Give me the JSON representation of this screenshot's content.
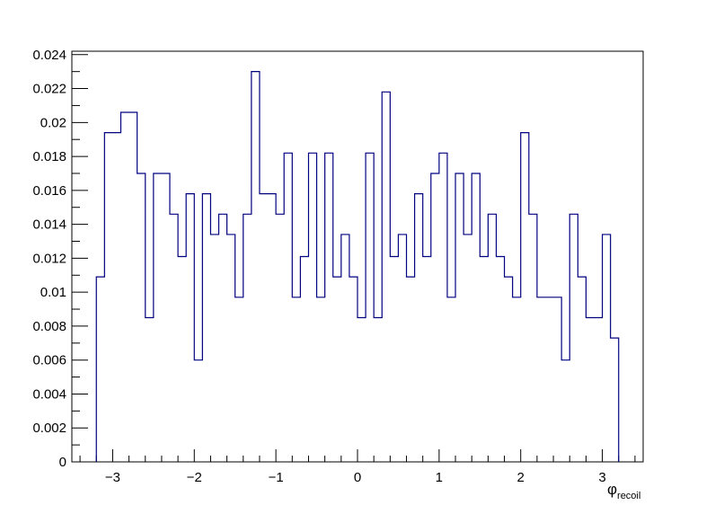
{
  "chart_data": {
    "type": "histogram-step",
    "xlabel_symbol": "φ",
    "xlabel_subscript": "recoil",
    "xlim": [
      -3.5,
      3.5
    ],
    "ylim": [
      0,
      0.0242
    ],
    "x_ticks": [
      -3,
      -2,
      -1,
      0,
      1,
      2,
      3
    ],
    "x_tick_labels": [
      "−3",
      "−2",
      "−1",
      "0",
      "1",
      "2",
      "3"
    ],
    "y_ticks": [
      0,
      0.002,
      0.004,
      0.006,
      0.008,
      0.01,
      0.012,
      0.014,
      0.016,
      0.018,
      0.02,
      0.022,
      0.024
    ],
    "y_tick_labels": [
      "0",
      "0.002",
      "0.004",
      "0.006",
      "0.008",
      "0.01",
      "0.012",
      "0.014",
      "0.016",
      "0.018",
      "0.02",
      "0.022",
      "0.024"
    ],
    "line_color": "#000080",
    "bin_edges": [
      -3.2,
      -3.1,
      -2.9,
      -2.7,
      -2.6,
      -2.5,
      -2.3,
      -2.2,
      -2.1,
      -2.0,
      -1.9,
      -1.8,
      -1.7,
      -1.6,
      -1.5,
      -1.4,
      -1.3,
      -1.2,
      -1.0,
      -0.9,
      -0.8,
      -0.7,
      -0.6,
      -0.5,
      -0.4,
      -0.3,
      -0.2,
      -0.1,
      0.0,
      0.1,
      0.2,
      0.3,
      0.4,
      0.5,
      0.6,
      0.7,
      0.8,
      0.9,
      1.0,
      1.1,
      1.2,
      1.3,
      1.4,
      1.5,
      1.6,
      1.7,
      1.8,
      1.9,
      2.0,
      2.1,
      2.2,
      2.5,
      2.6,
      2.7,
      2.8,
      3.0,
      3.1,
      3.2
    ],
    "values": [
      0.0109,
      0.0194,
      0.0206,
      0.017,
      0.0085,
      0.017,
      0.0146,
      0.0121,
      0.0158,
      0.006,
      0.0158,
      0.0134,
      0.0146,
      0.0134,
      0.0097,
      0.0146,
      0.023,
      0.0158,
      0.0146,
      0.0182,
      0.0097,
      0.0121,
      0.0182,
      0.0097,
      0.0182,
      0.0109,
      0.0134,
      0.0109,
      0.0085,
      0.0182,
      0.0085,
      0.0218,
      0.0121,
      0.0134,
      0.0109,
      0.0158,
      0.0121,
      0.017,
      0.0182,
      0.0097,
      0.017,
      0.0134,
      0.017,
      0.0121,
      0.0146,
      0.0121,
      0.0109,
      0.0097,
      0.0194,
      0.0146,
      0.0097,
      0.006,
      0.0146,
      0.0109,
      0.0085,
      0.0134,
      0.0073
    ]
  }
}
